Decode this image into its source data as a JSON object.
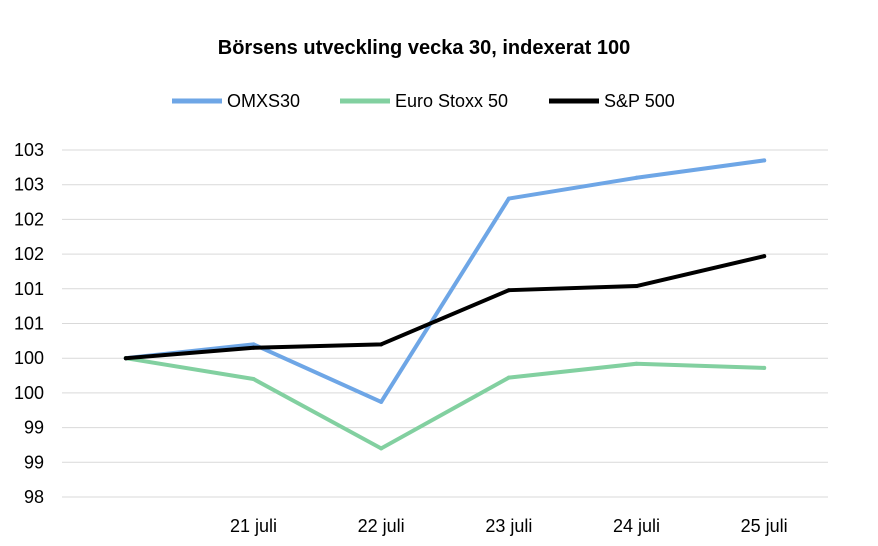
{
  "chart_data": {
    "type": "line",
    "title": "Börsens utveckling vecka 30, indexerat 100",
    "categories": [
      "",
      "21 juli",
      "22 juli",
      "23 juli",
      "24 juli",
      "25 juli"
    ],
    "y_tick_labels": [
      "103",
      "103",
      "102",
      "102",
      "101",
      "101",
      "100",
      "100",
      "99",
      "99",
      "98"
    ],
    "ylim": [
      98,
      103
    ],
    "grid": true,
    "legend_position": "top",
    "series": [
      {
        "name": "OMXS30",
        "color": "#6ea6e6",
        "values": [
          100,
          100.2,
          99.37,
          102.3,
          102.6,
          102.85
        ]
      },
      {
        "name": "Euro Stoxx 50",
        "color": "#82d0a0",
        "values": [
          100,
          99.7,
          98.7,
          99.72,
          99.92,
          99.86
        ]
      },
      {
        "name": "S&P 500",
        "color": "#000000",
        "values": [
          100,
          100.15,
          100.2,
          100.98,
          101.04,
          101.47
        ]
      }
    ]
  }
}
